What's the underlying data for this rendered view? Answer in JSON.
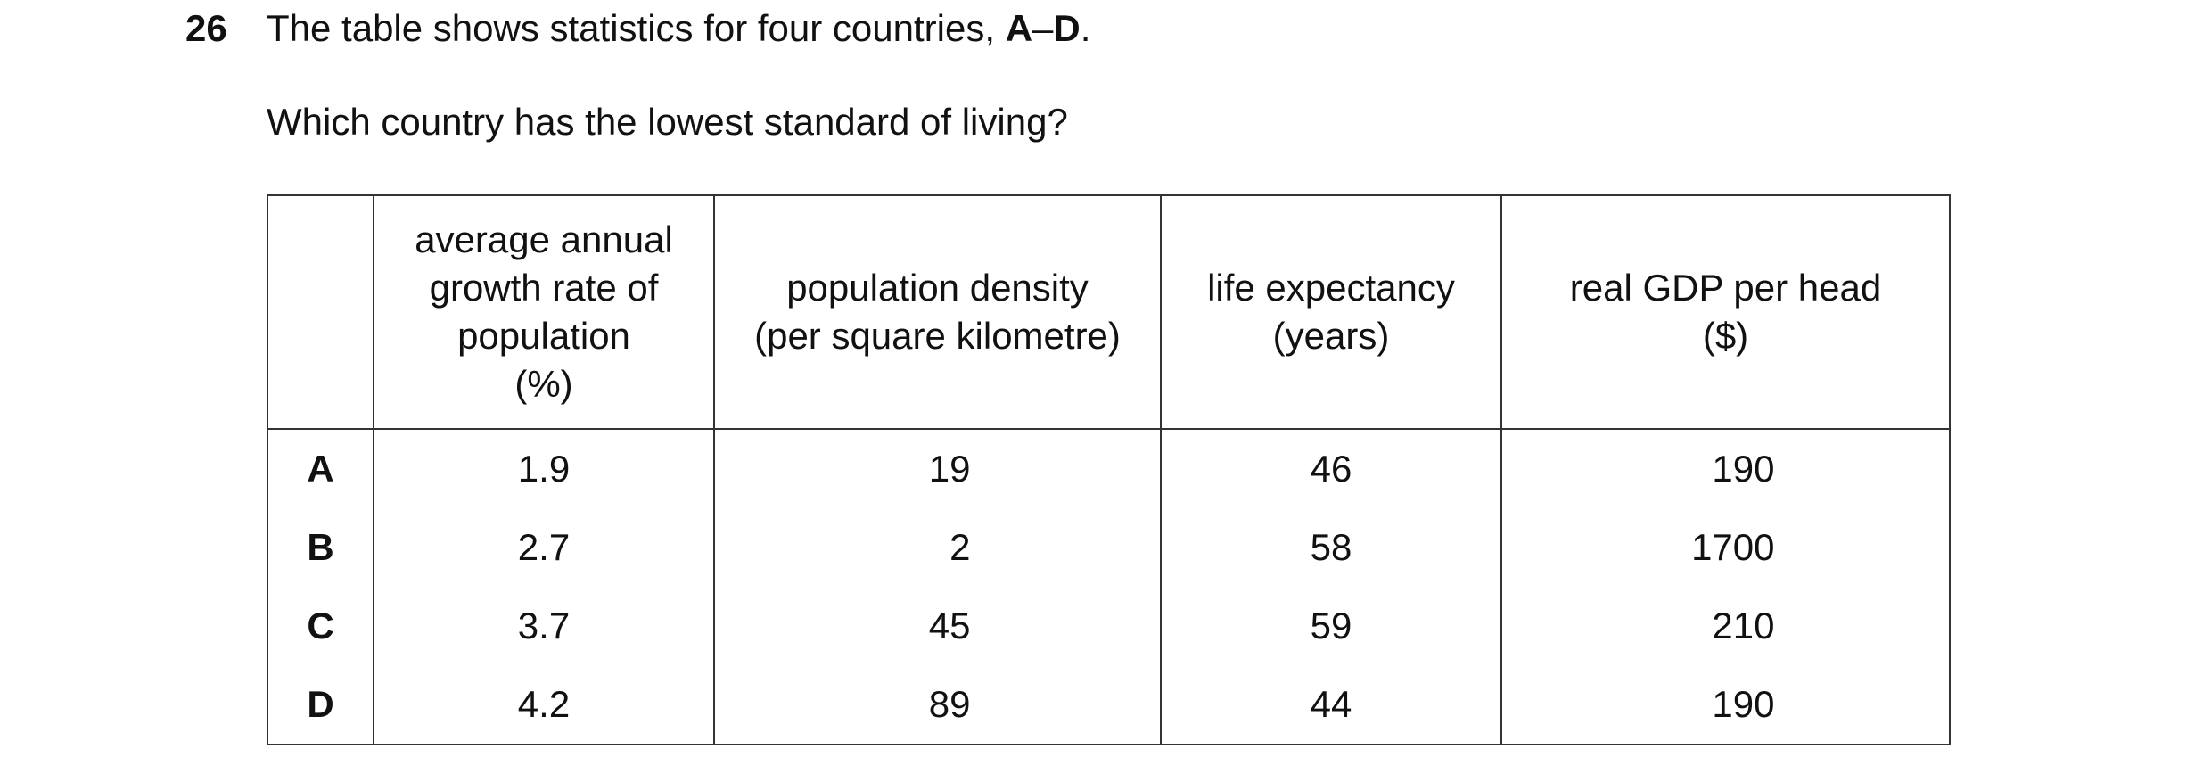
{
  "question": {
    "number": "26",
    "text": [
      "The table shows statistics for four countries, ",
      "A",
      "–",
      "D",
      "."
    ],
    "prompt": "Which country has the lowest standard of living?"
  },
  "table": {
    "header": [
      "average annual\ngrowth rate of\npopulation\n(%)",
      "population density\n(per square kilometre)",
      "life expectancy\n(years)",
      "real GDP per head\n($)"
    ],
    "rows": [
      [
        "A",
        1.9,
        19,
        46,
        190
      ],
      [
        "B",
        2.7,
        2,
        58,
        1700
      ],
      [
        "C",
        3.7,
        45,
        59,
        210
      ],
      [
        "D",
        4.2,
        89,
        44,
        190
      ]
    ]
  }
}
